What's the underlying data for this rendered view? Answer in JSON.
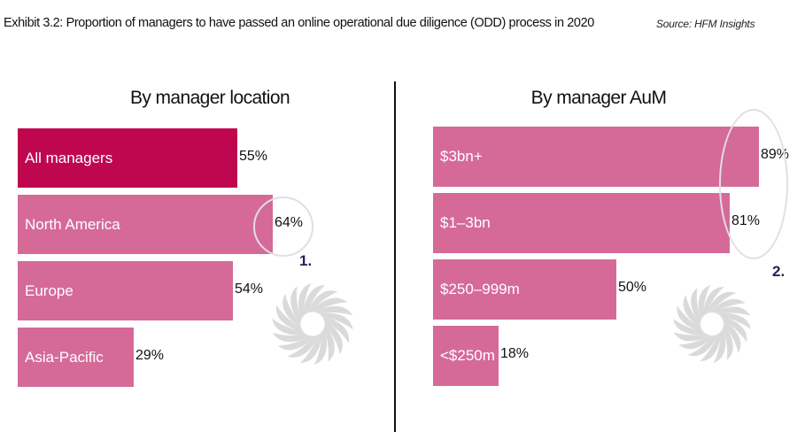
{
  "header": {
    "title": "Exhibit 3.2: Proportion of managers to have passed an online operational due diligence (ODD) process in 2020",
    "source": "Source: HFM Insights"
  },
  "colors": {
    "highlight_bar": "#bf0750",
    "bar": "#d56a99",
    "ring": "#e2dde8",
    "marker": "#23235b",
    "swirl": "#dadada"
  },
  "markers": [
    "1.",
    "2."
  ],
  "chart_data": [
    {
      "type": "bar",
      "orientation": "horizontal",
      "title": "By manager location",
      "categories": [
        "All managers",
        "North America",
        "Europe",
        "Asia-Pacific"
      ],
      "values": [
        55,
        64,
        54,
        29
      ],
      "value_labels": [
        "55%",
        "64%",
        "54%",
        "29%"
      ],
      "highlight_index": 0,
      "xlim": [
        0,
        100
      ]
    },
    {
      "type": "bar",
      "orientation": "horizontal",
      "title": "By manager AuM",
      "categories": [
        "$3bn+",
        "$1–3bn",
        "$250–999m",
        "<$250m"
      ],
      "values": [
        89,
        81,
        50,
        18
      ],
      "value_labels": [
        "89%",
        "81%",
        "50%",
        "18%"
      ],
      "highlight_index": -1,
      "xlim": [
        0,
        100
      ]
    }
  ]
}
